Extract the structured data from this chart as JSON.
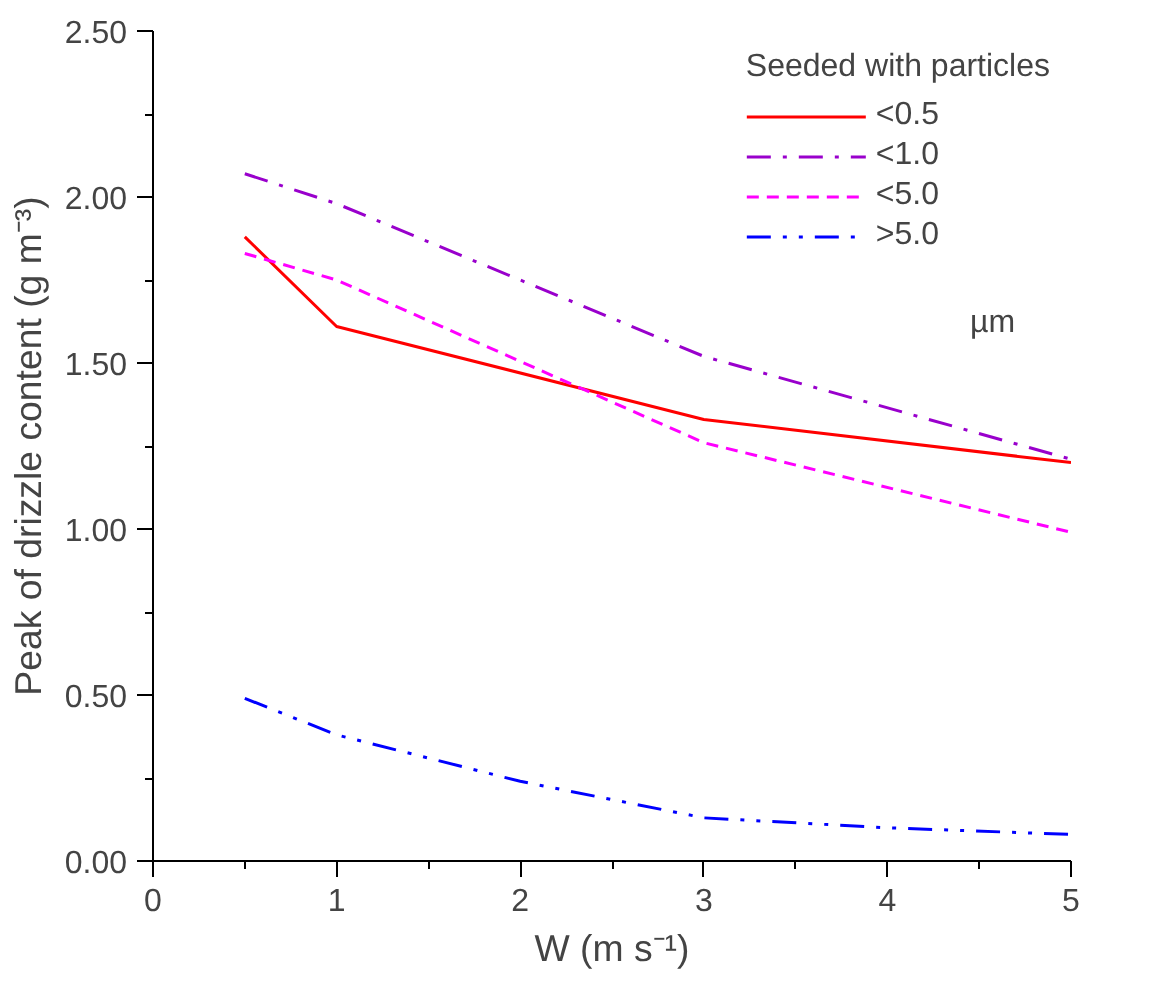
{
  "chart_data": {
    "type": "line",
    "xlabel": "W (m s⁻¹)",
    "ylabel": "Peak of drizzle content (g m⁻³)",
    "legend_title": "Seeded with particles",
    "legend": "top right",
    "grid": false,
    "xlim": [
      0,
      5
    ],
    "xticks": [
      0,
      1,
      2,
      3,
      4,
      5
    ],
    "ylim": [
      0,
      2.5
    ],
    "yticks": [
      {
        "value": 0,
        "label": "0.00"
      },
      {
        "value": 0.5,
        "label": "0.50"
      },
      {
        "value": 1,
        "label": "1.00"
      },
      {
        "value": 1.5,
        "label": "1.50"
      },
      {
        "value": 2,
        "label": "2.00"
      },
      {
        "value": 2.5,
        "label": "2.50"
      }
    ],
    "annotations": [
      {
        "text": "µm"
      }
    ],
    "series": [
      {
        "name": "<0.5",
        "color": "#ff0000",
        "line_style": "solid",
        "x": [
          0.5,
          1,
          3,
          5
        ],
        "values": [
          1.88,
          1.61,
          1.33,
          1.2
        ]
      },
      {
        "name": "<1.0",
        "color": "#9900cc",
        "line_style": "dashdot",
        "x": [
          0.5,
          1,
          3,
          5
        ],
        "values": [
          2.07,
          1.98,
          1.52,
          1.21
        ]
      },
      {
        "name": "<5.0",
        "color": "#ff00ff",
        "line_style": "dashed",
        "x": [
          0.5,
          1,
          3,
          5
        ],
        "values": [
          1.83,
          1.75,
          1.26,
          0.99
        ]
      },
      {
        "name": ">5.0",
        "color": "#0000ff",
        "line_style": "dashdotdot",
        "x": [
          0.5,
          1,
          2,
          3,
          4,
          5
        ],
        "values": [
          0.49,
          0.38,
          0.24,
          0.13,
          0.1,
          0.08
        ]
      }
    ]
  }
}
